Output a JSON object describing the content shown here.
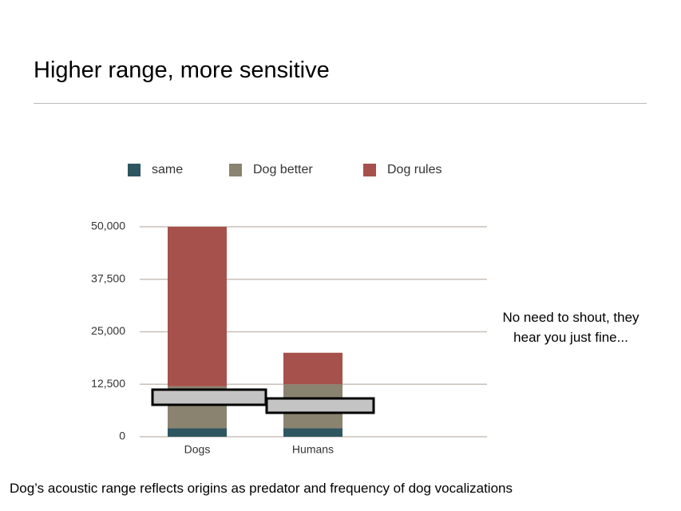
{
  "title": "Higher range, more sensitive",
  "annotation": "No need to shout, they hear you just fine...",
  "caption": "Dog’s acoustic range reflects origins as predator and frequency of dog vocalizations",
  "chart_data": {
    "type": "stacked-bar",
    "categories": [
      "Dogs",
      "Humans"
    ],
    "series": [
      {
        "name": "same",
        "color": "#2d5661",
        "values": [
          2000,
          2000
        ]
      },
      {
        "name": "Dog better",
        "color": "#8a8370",
        "values": [
          10000,
          10500
        ]
      },
      {
        "name": "Dog rules",
        "color": "#a6514b",
        "values": [
          38000,
          7500
        ]
      }
    ],
    "ylim": [
      0,
      50000
    ],
    "yticks": [
      0,
      {
        "value": 12500,
        "label": "12,500"
      },
      {
        "value": 25000,
        "label": "25,000"
      },
      {
        "value": 37500,
        "label": "37,500"
      },
      {
        "value": 50000,
        "label": "50,000"
      }
    ],
    "grid": true,
    "legend": "top"
  }
}
